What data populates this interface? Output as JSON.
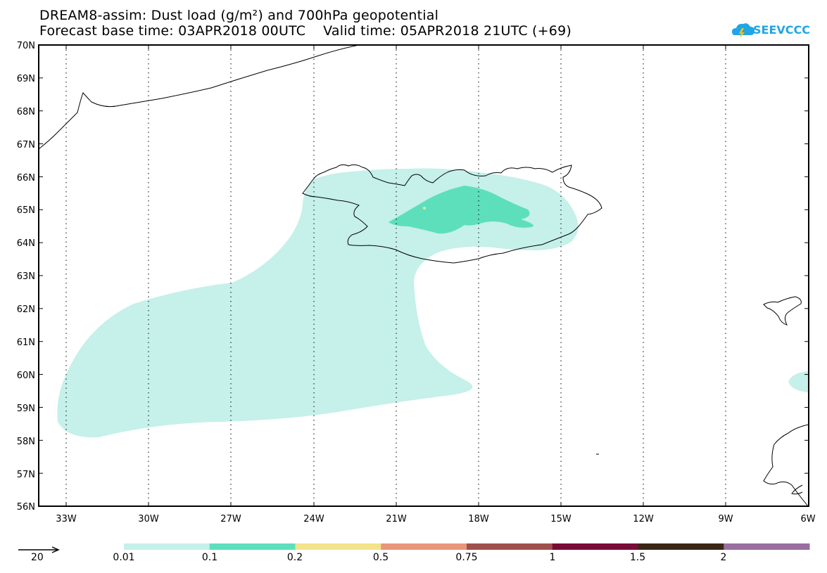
{
  "title": {
    "line1": "DREAM8-assim: Dust load (g/m²) and 700hPa geopotential",
    "line2": "Forecast base time: 03APR2018 00UTC    Valid time: 05APR2018 21UTC (+69)"
  },
  "logo": {
    "text": "SEEVCCC"
  },
  "axes": {
    "lat_labels": [
      "70N",
      "69N",
      "68N",
      "67N",
      "66N",
      "65N",
      "64N",
      "63N",
      "62N",
      "61N",
      "60N",
      "59N",
      "58N",
      "57N",
      "56N"
    ],
    "lon_labels": [
      "33W",
      "30W",
      "27W",
      "24W",
      "21W",
      "18W",
      "15W",
      "12W",
      "9W",
      "6W"
    ]
  },
  "legend": {
    "vector_label": "20",
    "levels": [
      "0.01",
      "0.1",
      "0.2",
      "0.5",
      "0.75",
      "1",
      "1.5",
      "2"
    ],
    "colors": [
      "#c6f0ea",
      "#5ddfbc",
      "#f4e38a",
      "#e8957a",
      "#a0504c",
      "#7a0b36",
      "#3b2617",
      "#9a6fa0"
    ]
  },
  "colors": {
    "dust_light": "#c6f0ea",
    "dust_medium": "#5ddfbc",
    "coast": "#000000",
    "logo": "#1fa6e6"
  }
}
